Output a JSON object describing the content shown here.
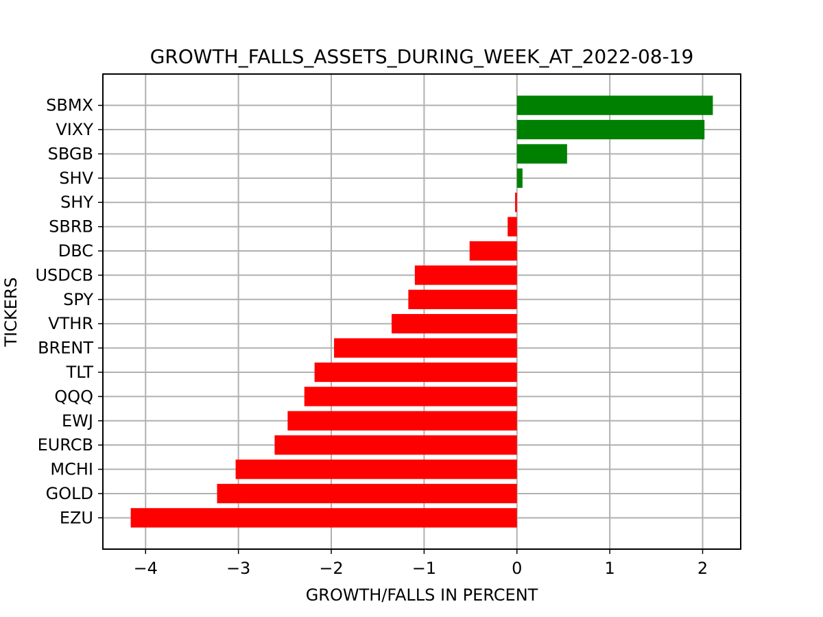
{
  "chart_data": {
    "type": "bar",
    "orientation": "horizontal",
    "title": "GROWTH_FALLS_ASSETS_DURING_WEEK_AT_2022-08-19",
    "xlabel": "GROWTH/FALLS IN PERCENT",
    "ylabel": "TICKERS",
    "categories": [
      "EZU",
      "GOLD",
      "MCHI",
      "EURCB",
      "EWJ",
      "QQQ",
      "TLT",
      "BRENT",
      "VTHR",
      "SPY",
      "USDCB",
      "DBC",
      "SBRB",
      "SHY",
      "SHV",
      "SBGB",
      "VIXY",
      "SBMX"
    ],
    "values": [
      -4.16,
      -3.23,
      -3.03,
      -2.61,
      -2.47,
      -2.29,
      -2.18,
      -1.97,
      -1.35,
      -1.17,
      -1.1,
      -0.51,
      -0.1,
      -0.02,
      0.06,
      0.54,
      2.02,
      2.11
    ],
    "xlim": [
      -4.46,
      2.41
    ],
    "xticks": [
      -4,
      -3,
      -2,
      -1,
      0,
      1,
      2
    ],
    "xtick_labels": [
      "−4",
      "−3",
      "−2",
      "−1",
      "0",
      "1",
      "2"
    ],
    "grid": true,
    "colors": {
      "positive": "#008000",
      "negative": "#ff0000"
    }
  }
}
